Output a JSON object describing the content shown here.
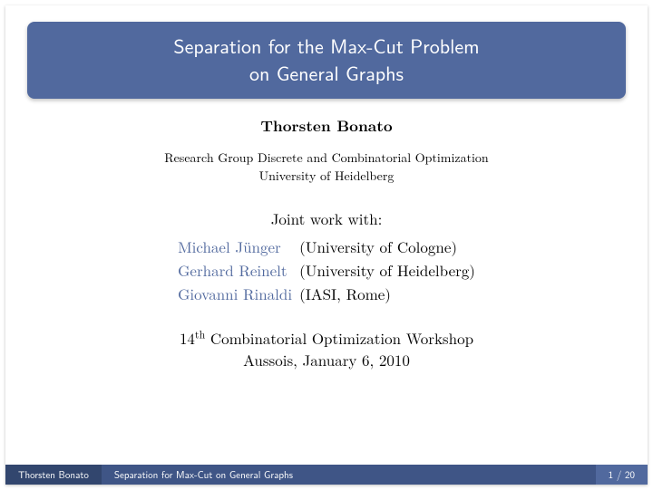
{
  "colors": {
    "theme_main": "#51699e",
    "theme_dark": "#3f5586",
    "theme_darker": "#32466e",
    "link": "#51699e",
    "text": "#000000",
    "title_text": "#ffffff",
    "background": "#ffffff"
  },
  "title": {
    "line1": "Separation for the Max-Cut Problem",
    "line2": "on General Graphs",
    "fontsize": 22,
    "background": "#51699e",
    "color": "#ffffff",
    "border_radius": 8
  },
  "author": {
    "name": "Thorsten Bonato",
    "fontsize": 17,
    "weight": "bold"
  },
  "affiliation": {
    "line1": "Research Group Discrete and Combinatorial Optimization",
    "line2": "University of Heidelberg",
    "fontsize": 14
  },
  "joint_work": {
    "label": "Joint work with:",
    "fontsize": 17,
    "name_color": "#51699e",
    "collaborators": [
      {
        "name": "Michael Jünger",
        "inst": "(University of Cologne)"
      },
      {
        "name": "Gerhard Reinelt",
        "inst": "(University of Heidelberg)"
      },
      {
        "name": "Giovanni Rinaldi",
        "inst": "(IASI, Rome)"
      }
    ]
  },
  "event": {
    "ordinal": "14",
    "ordinal_suffix": "th",
    "name": " Combinatorial Optimization Workshop",
    "location": "Aussois, January 6, 2010",
    "fontsize": 17
  },
  "footer": {
    "author": "Thorsten Bonato",
    "short_title": "Separation for Max-Cut on General Graphs",
    "page": "1 / 20",
    "fontsize": 11,
    "seg_colors": [
      "#32466e",
      "#3f5586",
      "#51699e"
    ]
  }
}
